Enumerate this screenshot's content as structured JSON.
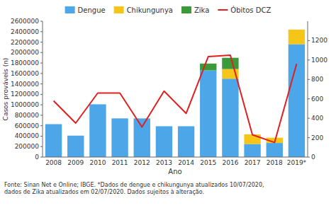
{
  "chart_data": {
    "type": "bar",
    "stacked": true,
    "grid": false,
    "legend": "top",
    "xlabel": "Ano",
    "ylabel": "Casos prováveis (n)",
    "footnote": "Fonte: Sinan Net e Online; IBGE. *Dados de dengue e chikungunya atualizados 10/07/2020,\ndados de Zika atualizados em 02/07/2020. Dados sujeitos à alteração.",
    "categories": [
      "2008",
      "2009",
      "2010",
      "2011",
      "2012",
      "2013",
      "2014",
      "2015",
      "2016",
      "2017",
      "2018",
      "2019*"
    ],
    "series": [
      {
        "name": "Dengue",
        "color": "#4da6e8",
        "values": [
          630000,
          410000,
          1010000,
          740000,
          740000,
          590000,
          590000,
          1660000,
          1500000,
          250000,
          270000,
          2160000
        ]
      },
      {
        "name": "Chikungunya",
        "color": "#f5c518",
        "values": [
          0,
          0,
          0,
          0,
          0,
          0,
          0,
          0,
          185000,
          185000,
          100000,
          280000
        ]
      },
      {
        "name": "Zika",
        "color": "#3a9a3a",
        "values": [
          0,
          0,
          0,
          0,
          0,
          0,
          0,
          130000,
          215000,
          0,
          0,
          0
        ]
      },
      {
        "name": "Óbitos DCZ",
        "type": "line",
        "axis": "y2",
        "color": "#e02020",
        "values": [
          580,
          350,
          660,
          660,
          310,
          680,
          450,
          1035,
          1050,
          230,
          150,
          960
        ]
      }
    ],
    "ylim": [
      0,
      2600000
    ],
    "yticks": [
      0,
      200000,
      400000,
      600000,
      800000,
      1000000,
      1200000,
      1400000,
      1600000,
      1800000,
      2000000,
      2200000,
      2400000,
      2600000
    ],
    "y2lim": [
      0,
      1400
    ],
    "y2ticks": [
      0,
      200,
      400,
      600,
      800,
      1000,
      1200
    ]
  }
}
